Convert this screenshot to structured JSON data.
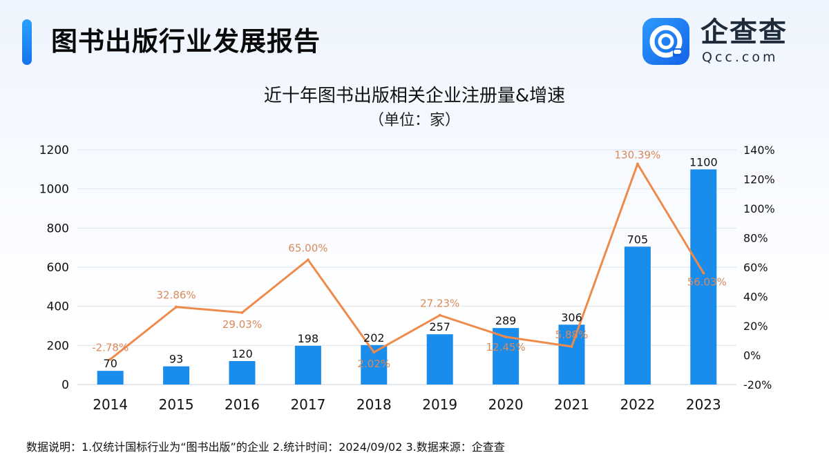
{
  "header": {
    "title": "图书出版行业发展报告"
  },
  "logo": {
    "name": "企查查",
    "domain": "Qcc.com",
    "icon": "qcc-logo-icon"
  },
  "footnote": "数据说明：1.仅统计国标行业为“图书出版”的企业  2.统计时间：2024/09/02  3.数据来源：企查查",
  "colors": {
    "bar": "#1a8ceb",
    "line": "#ee8a4a",
    "line_label": "#d9895a",
    "grid": "#dde3ec"
  },
  "chart_data": {
    "type": "bar",
    "title": "近十年图书出版相关企业注册量&增速",
    "subtitle": "（单位：家）",
    "categories": [
      "2014",
      "2015",
      "2016",
      "2017",
      "2018",
      "2019",
      "2020",
      "2021",
      "2022",
      "2023"
    ],
    "ylim": [
      0,
      1200
    ],
    "yticks": [
      "0",
      "200",
      "400",
      "600",
      "800",
      "1000",
      "1200"
    ],
    "y2lim": [
      -20,
      140
    ],
    "y2ticks": [
      "-20%",
      "0%",
      "20%",
      "40%",
      "60%",
      "80%",
      "100%",
      "120%",
      "140%"
    ],
    "grid": true,
    "legend": "none",
    "series": [
      {
        "type": "bar",
        "axis": "left",
        "values": [
          70,
          93,
          120,
          198,
          202,
          257,
          289,
          306,
          705,
          1100
        ],
        "labels": [
          "70",
          "93",
          "120",
          "198",
          "202",
          "257",
          "289",
          "306",
          "705",
          "1100"
        ]
      },
      {
        "type": "line",
        "axis": "right",
        "values": [
          -2.78,
          32.86,
          29.03,
          65.0,
          2.02,
          27.23,
          12.45,
          5.88,
          130.39,
          56.03
        ],
        "labels": [
          "-2.78%",
          "32.86%",
          "29.03%",
          "65.00%",
          "2.02%",
          "27.23%",
          "12.45%",
          "5.88%",
          "130.39%",
          "56.03%"
        ]
      }
    ]
  }
}
